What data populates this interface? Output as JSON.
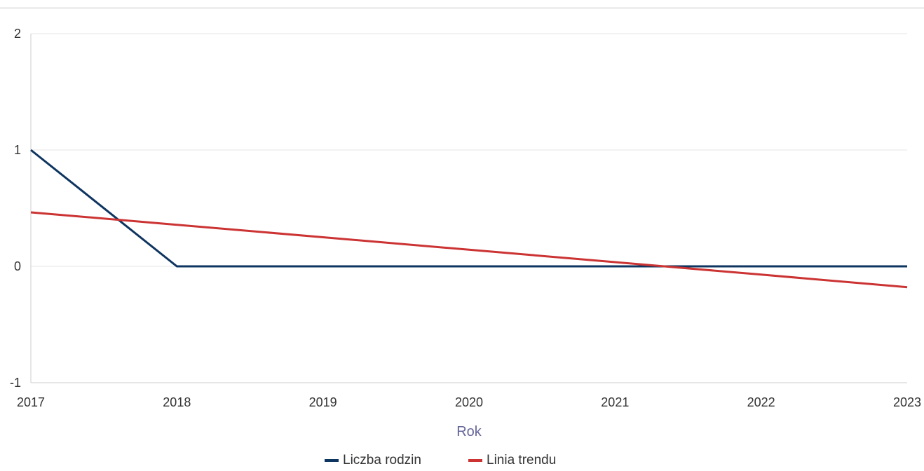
{
  "chart_data": {
    "type": "line",
    "title": "",
    "xlabel": "Rok",
    "ylabel": "",
    "x": [
      2017,
      2018,
      2019,
      2020,
      2021,
      2022,
      2023
    ],
    "xlim": [
      2017,
      2023
    ],
    "ylim": [
      -1,
      2
    ],
    "yticks": [
      -1,
      0,
      1,
      2
    ],
    "grid": true,
    "legend_position": "bottom-center",
    "series": [
      {
        "name": "Liczba rodzin",
        "color": "#0e3460",
        "values": [
          1,
          0,
          0,
          0,
          0,
          0,
          0
        ]
      },
      {
        "name": "Linia trendu",
        "color": "#cc3333",
        "values": [
          0.464,
          0.357,
          0.25,
          0.143,
          0.036,
          -0.071,
          -0.179
        ]
      }
    ]
  }
}
